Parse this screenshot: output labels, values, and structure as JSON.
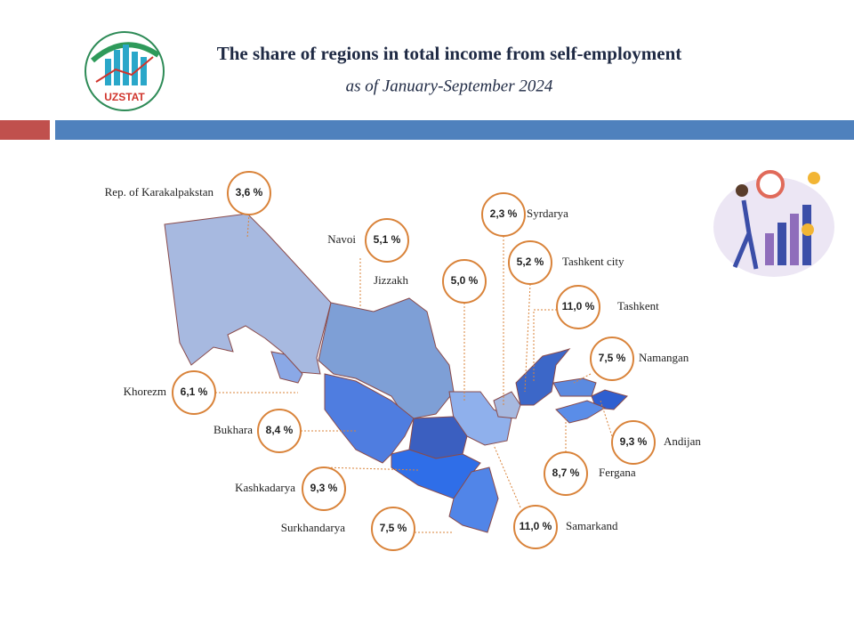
{
  "header": {
    "title": "The share of regions in total income from self-employment",
    "subtitle": "as of January-September 2024",
    "logo_text": "UZSTAT"
  },
  "regions": [
    {
      "name": "Rep. of  Karakalpakstan",
      "value": "3,6 %"
    },
    {
      "name": "Navoi",
      "value": "5,1 %"
    },
    {
      "name": "Jizzakh",
      "value": "5,0 %"
    },
    {
      "name": "Syrdarya",
      "value": "2,3 %"
    },
    {
      "name": "Tashkent  city",
      "value": "5,2 %"
    },
    {
      "name": "Tashkent",
      "value": "11,0 %"
    },
    {
      "name": "Namangan",
      "value": "7,5 %"
    },
    {
      "name": "Andijan",
      "value": "9,3 %"
    },
    {
      "name": "Fergana",
      "value": "8,7 %"
    },
    {
      "name": "Samarkand",
      "value": "11,0 %"
    },
    {
      "name": "Surkhandarya",
      "value": "7,5 %"
    },
    {
      "name": "Kashkadarya",
      "value": "9,3 %"
    },
    {
      "name": "Bukhara",
      "value": "8,4 %"
    },
    {
      "name": "Khorezm",
      "value": "6,1 %"
    }
  ]
}
